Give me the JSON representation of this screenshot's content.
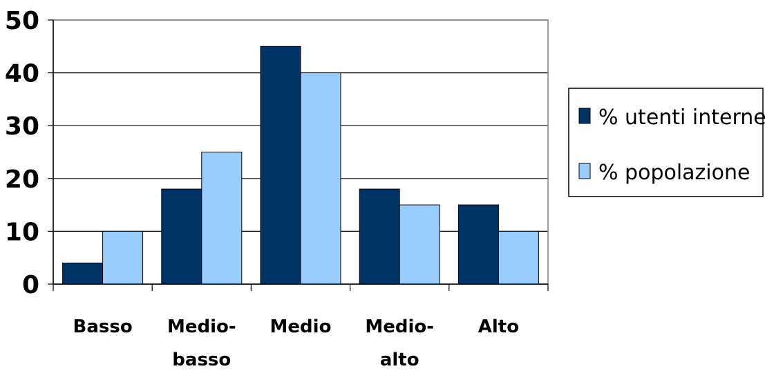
{
  "chart_data": {
    "type": "bar",
    "categories": [
      [
        "Basso"
      ],
      [
        "Medio-",
        "basso"
      ],
      [
        "Medio"
      ],
      [
        "Medio-",
        "alto"
      ],
      [
        "Alto"
      ]
    ],
    "series": [
      {
        "name": "% utenti internet",
        "color": "#003366",
        "values": [
          4,
          18,
          45,
          18,
          15
        ]
      },
      {
        "name": "% popolazione",
        "color": "#99ccff",
        "values": [
          10,
          25,
          40,
          15,
          10
        ]
      }
    ],
    "yticks": [
      0,
      10,
      20,
      30,
      40,
      50
    ],
    "ylim": [
      0,
      50
    ],
    "grid": true,
    "legend_position": "right"
  }
}
